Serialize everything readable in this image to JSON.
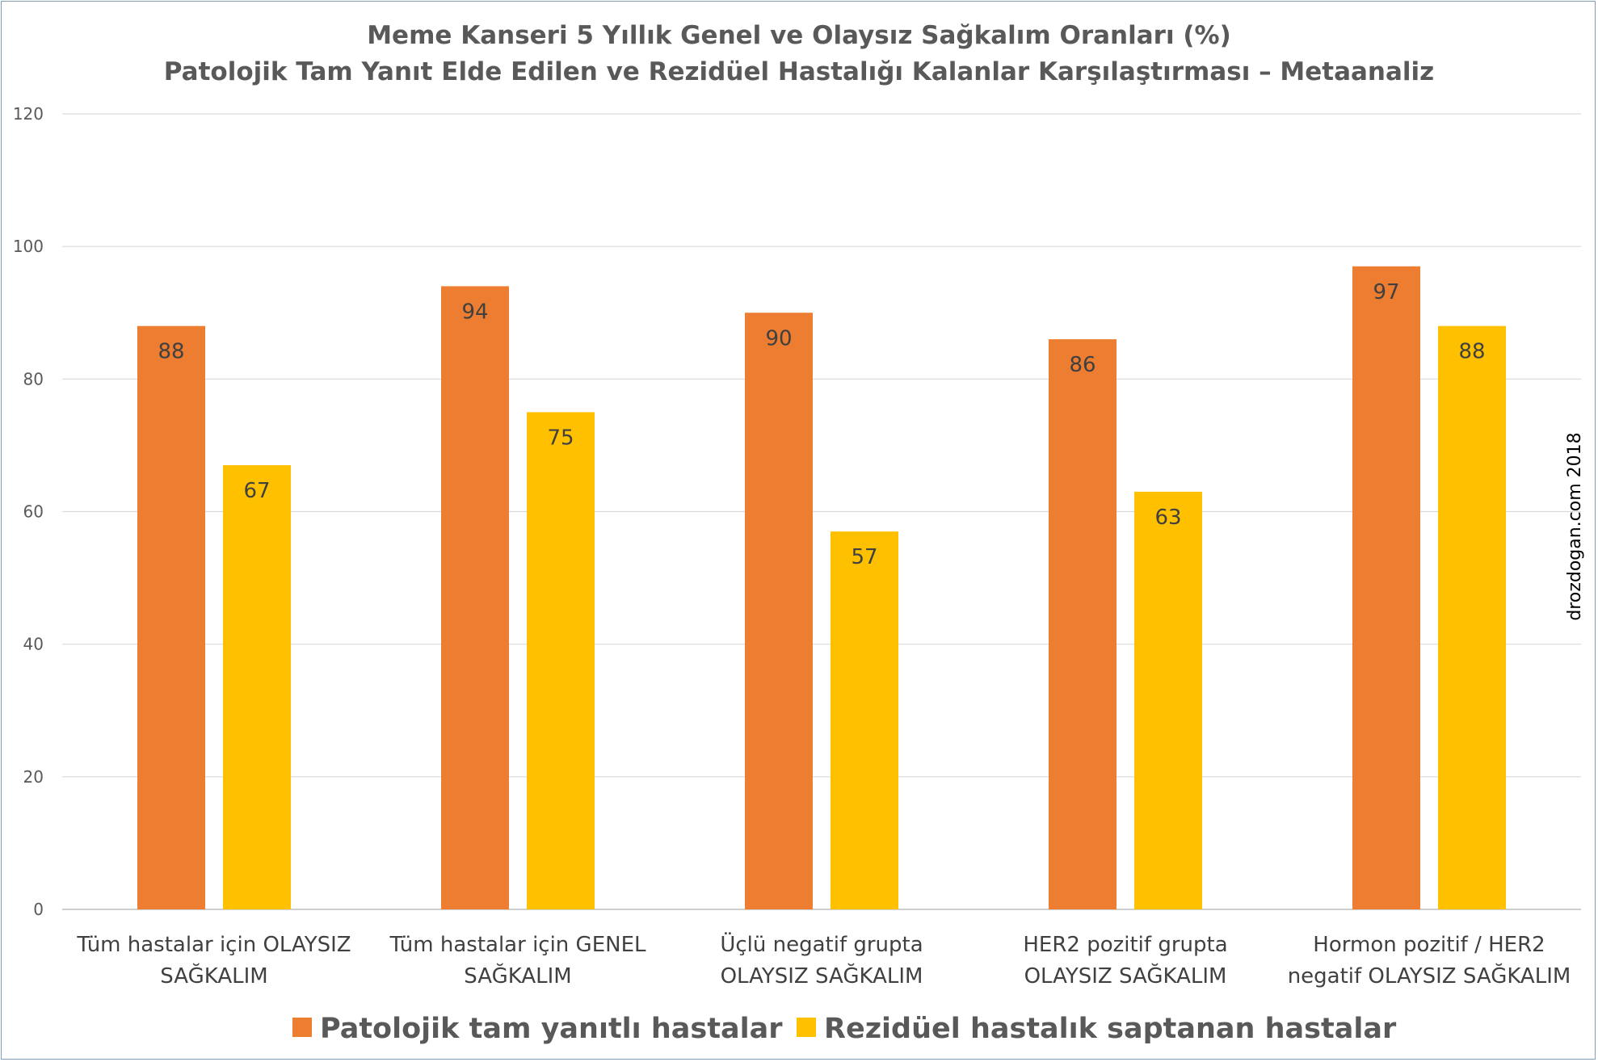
{
  "chart_data": {
    "type": "bar",
    "title_lines": [
      "Meme Kanseri 5 Yıllık Genel ve Olaysız Sağkalım Oranları (%)",
      "Patolojik Tam Yanıt Elde Edilen ve Rezidüel Hastalığı Kalanlar Karşılaştırması – Metaanaliz"
    ],
    "categories": [
      [
        "Tüm hastalar için OLAYSIZ",
        "SAĞKALIM"
      ],
      [
        "Tüm hastalar için GENEL",
        "SAĞKALIM"
      ],
      [
        "Üçlü negatif grupta",
        "OLAYSIZ SAĞKALIM"
      ],
      [
        "HER2 pozitif grupta",
        "OLAYSIZ SAĞKALIM"
      ],
      [
        "Hormon pozitif / HER2",
        "negatif OLAYSIZ SAĞKALIM"
      ]
    ],
    "series": [
      {
        "name": "Patolojik tam yanıtlı hastalar",
        "color": "#ed7d31",
        "values": [
          88,
          94,
          90,
          86,
          97
        ]
      },
      {
        "name": "Rezidüel hastalık saptanan hastalar",
        "color": "#ffc000",
        "values": [
          67,
          75,
          57,
          63,
          88
        ]
      }
    ],
    "ylim": [
      0,
      120
    ],
    "yticks": [
      0,
      20,
      40,
      60,
      80,
      100,
      120
    ],
    "grid": true,
    "legend_position": "bottom",
    "data_labels": true
  },
  "watermark": "drozdogan.com 2018"
}
